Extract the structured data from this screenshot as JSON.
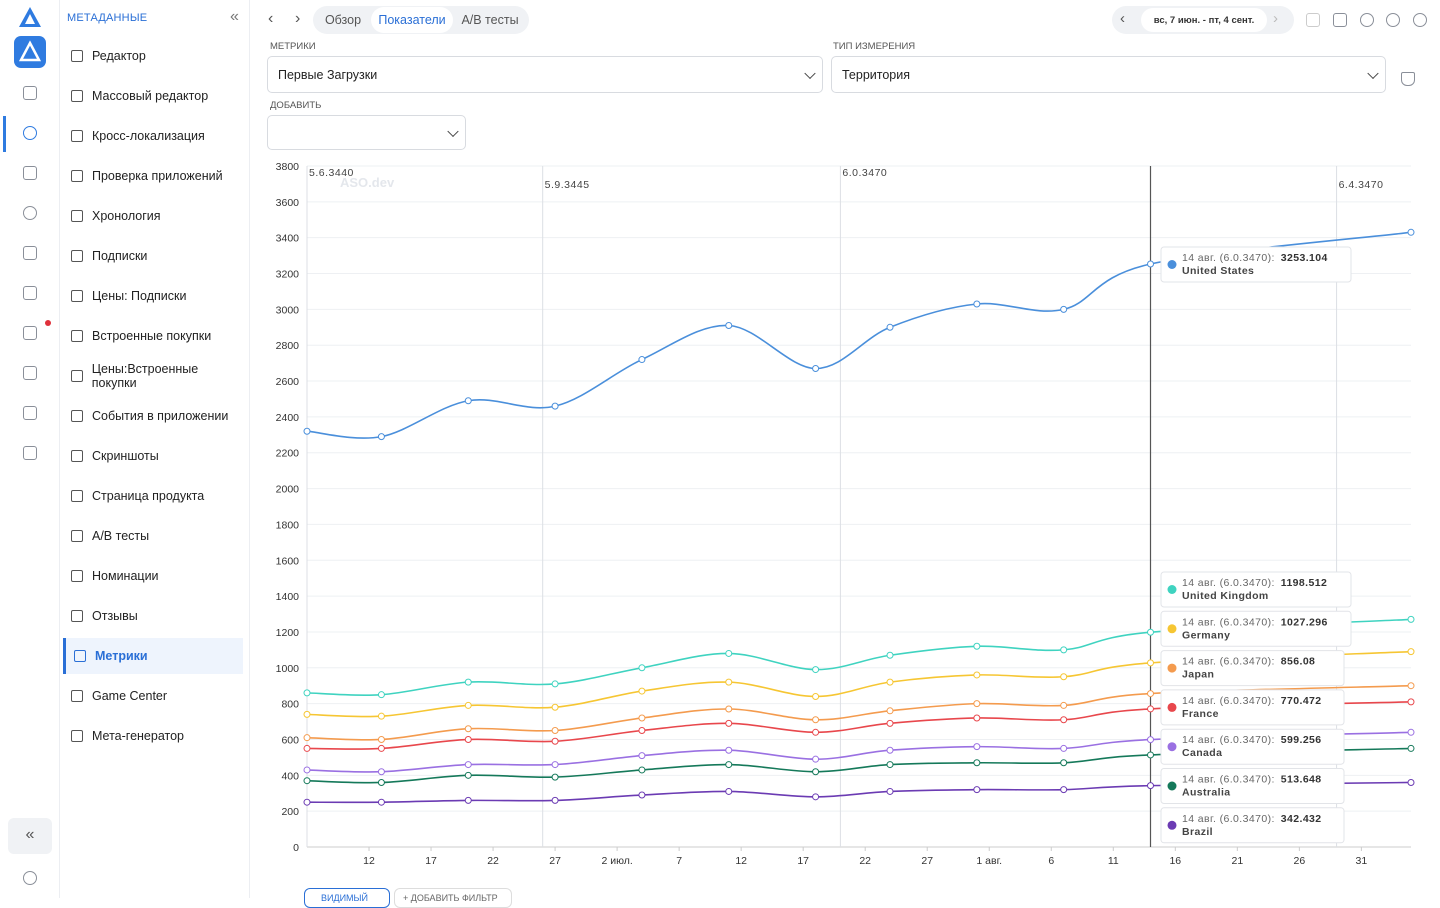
{
  "sidebar": {
    "title": "МЕТАДАННЫЕ",
    "items": [
      "Редактор",
      "Массовый редактор",
      "Кросс-локализация",
      "Проверка приложений",
      "Хронология",
      "Подписки",
      "Цены: Подписки",
      "Встроенные покупки",
      "Цены:Встроенные покупки",
      "События в приложении",
      "Скриншоты",
      "Страница продукта",
      "A/B тесты",
      "Номинации",
      "Отзывы",
      "Метрики",
      "Game Center",
      "Мета-генератор"
    ],
    "active": "Метрики"
  },
  "toolbar": {
    "tabs": [
      "Обзор",
      "Показатели",
      "A/B тесты"
    ],
    "active_tab": "Показатели",
    "date_range": "вс, 7 июн. - пт, 4 сент."
  },
  "filters": {
    "metrics_label": "МЕТРИКИ",
    "metric": "Первые Загрузки",
    "dimension_label": "ТИП ИЗМЕРЕНИЯ",
    "dimension": "Территория",
    "add_label": "ДОБАВИТЬ"
  },
  "footer": {
    "buttons": [
      "ВИДИМЫЙ",
      "+ ДОБАВИТЬ ФИЛЬТР"
    ]
  },
  "chart_data": {
    "type": "line",
    "watermark": "ASO.dev",
    "x": [
      0,
      6,
      13,
      20,
      27,
      34,
      41,
      47,
      54,
      61,
      68,
      89
    ],
    "xlim": [
      0,
      89
    ],
    "xticks": [
      {
        "value": 5,
        "label": "12"
      },
      {
        "value": 10,
        "label": "17"
      },
      {
        "value": 15,
        "label": "22"
      },
      {
        "value": 20,
        "label": "27"
      },
      {
        "value": 25,
        "label": "2 июл."
      },
      {
        "value": 30,
        "label": "7"
      },
      {
        "value": 35,
        "label": "12"
      },
      {
        "value": 40,
        "label": "17"
      },
      {
        "value": 45,
        "label": "22"
      },
      {
        "value": 50,
        "label": "27"
      },
      {
        "value": 55,
        "label": "1 авг."
      },
      {
        "value": 60,
        "label": "6"
      },
      {
        "value": 65,
        "label": "11"
      },
      {
        "value": 70,
        "label": "16"
      },
      {
        "value": 75,
        "label": "21"
      },
      {
        "value": 80,
        "label": "26"
      },
      {
        "value": 85,
        "label": "31"
      }
    ],
    "ylim": [
      0,
      3800
    ],
    "yticks": [
      0,
      200,
      400,
      600,
      800,
      1000,
      1200,
      1400,
      1600,
      1800,
      2000,
      2200,
      2400,
      2600,
      2800,
      3000,
      3200,
      3400,
      3600,
      3800
    ],
    "grid": true,
    "annotations": [
      {
        "x": 0,
        "label": "5.6.3440"
      },
      {
        "x": 19,
        "label": "5.9.3445"
      },
      {
        "x": 43,
        "label": "6.0.3470"
      },
      {
        "x": 83,
        "label": "6.4.3470"
      }
    ],
    "tooltip_label": "14 авг. (6.0.3470):",
    "series": [
      {
        "name": "United States",
        "color": "#4a8fdb",
        "values": [
          2320,
          2290,
          2490,
          2460,
          2720,
          2910,
          2670,
          2900,
          3030,
          3000,
          3253.104,
          3430
        ]
      },
      {
        "name": "United Kingdom",
        "color": "#3fd3c0",
        "values": [
          860,
          850,
          920,
          910,
          1000,
          1080,
          990,
          1070,
          1120,
          1100,
          1198.512,
          1270
        ]
      },
      {
        "name": "Germany",
        "color": "#f6c633",
        "values": [
          740,
          730,
          790,
          780,
          870,
          920,
          840,
          920,
          960,
          950,
          1027.296,
          1090
        ]
      },
      {
        "name": "Japan",
        "color": "#f49b4e",
        "values": [
          610,
          600,
          660,
          650,
          720,
          770,
          710,
          760,
          800,
          790,
          856.08,
          900
        ]
      },
      {
        "name": "France",
        "color": "#e8474c",
        "values": [
          550,
          550,
          600,
          590,
          650,
          690,
          640,
          690,
          720,
          710,
          770.472,
          810
        ]
      },
      {
        "name": "Canada",
        "color": "#9a70e2",
        "values": [
          430,
          420,
          460,
          460,
          510,
          540,
          490,
          540,
          560,
          550,
          599.256,
          640
        ]
      },
      {
        "name": "Australia",
        "color": "#15795a",
        "values": [
          370,
          360,
          400,
          390,
          430,
          460,
          420,
          460,
          470,
          470,
          513.648,
          550
        ]
      },
      {
        "name": "Brazil",
        "color": "#6b3bb3",
        "values": [
          250,
          250,
          260,
          260,
          290,
          310,
          280,
          310,
          320,
          320,
          342.432,
          360
        ]
      }
    ]
  }
}
